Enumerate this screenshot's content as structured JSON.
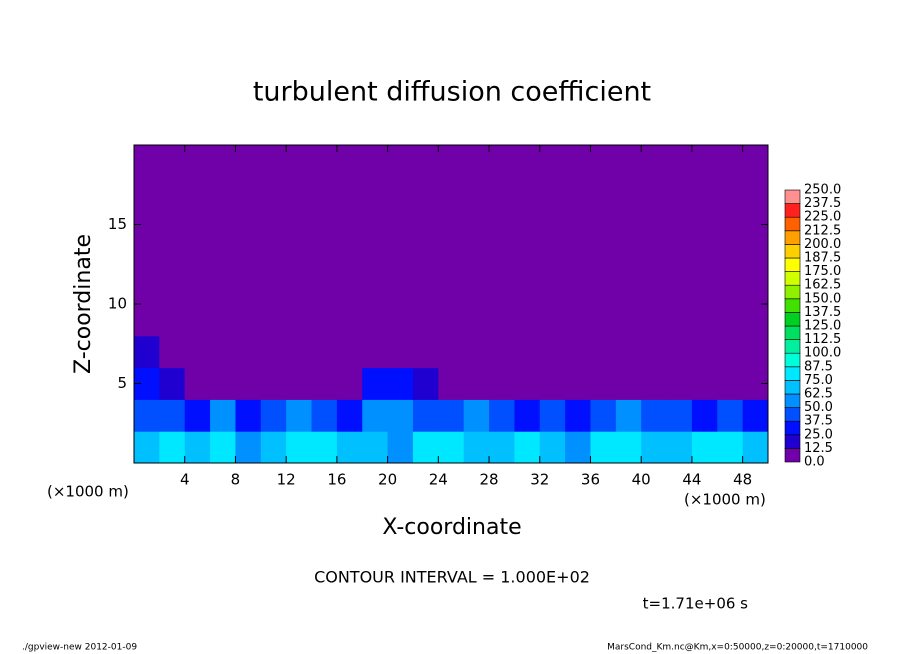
{
  "chart_data": {
    "type": "contour",
    "title": "turbulent diffusion coefficient",
    "x_label": "X-coordinate",
    "y_label": "Z-coordinate",
    "x_unit": "(×1000 m)",
    "y_unit": "(×1000 m)",
    "xlim": [
      0,
      50
    ],
    "ylim": [
      0,
      20
    ],
    "xticks": [
      4,
      8,
      12,
      16,
      20,
      24,
      28,
      32,
      36,
      40,
      44,
      48
    ],
    "yticks": [
      5,
      10,
      15
    ],
    "x": [
      1,
      3,
      5,
      7,
      9,
      11,
      13,
      15,
      17,
      19,
      21,
      23,
      25,
      27,
      29,
      31,
      33,
      35,
      37,
      39,
      41,
      43,
      45,
      47,
      49
    ],
    "y": [
      1,
      3,
      5,
      7,
      9,
      11,
      13,
      15,
      17,
      19
    ],
    "z": [
      [
        70,
        75,
        65,
        80,
        60,
        70,
        85,
        75,
        65,
        70,
        60,
        75,
        80,
        70,
        65,
        75,
        70,
        60,
        80,
        75,
        70,
        65,
        75,
        80,
        70
      ],
      [
        45,
        40,
        35,
        50,
        30,
        45,
        55,
        40,
        35,
        50,
        55,
        45,
        40,
        50,
        45,
        35,
        40,
        30,
        45,
        50,
        40,
        45,
        35,
        40,
        30
      ],
      [
        35,
        20,
        0,
        0,
        0,
        5,
        0,
        0,
        5,
        25,
        35,
        15,
        0,
        0,
        0,
        0,
        0,
        0,
        5,
        0,
        0,
        0,
        0,
        0,
        0
      ],
      [
        15,
        0,
        0,
        0,
        0,
        0,
        0,
        5,
        10,
        0,
        0,
        0,
        0,
        0,
        0,
        0,
        0,
        0,
        0,
        0,
        0,
        0,
        0,
        0,
        0
      ],
      [
        0,
        0,
        0,
        0,
        0,
        0,
        0,
        0,
        0,
        0,
        0,
        0,
        0,
        0,
        0,
        0,
        0,
        0,
        0,
        0,
        0,
        0,
        0,
        0,
        0
      ],
      [
        0,
        0,
        0,
        0,
        0,
        0,
        0,
        0,
        0,
        0,
        0,
        0,
        0,
        0,
        0,
        0,
        0,
        0,
        0,
        0,
        0,
        0,
        0,
        0,
        0
      ],
      [
        0,
        0,
        0,
        0,
        0,
        0,
        0,
        0,
        0,
        0,
        0,
        0,
        0,
        0,
        0,
        0,
        0,
        0,
        0,
        0,
        0,
        0,
        0,
        0,
        0
      ],
      [
        0,
        0,
        0,
        0,
        0,
        0,
        0,
        0,
        0,
        0,
        0,
        0,
        0,
        0,
        0,
        0,
        0,
        0,
        0,
        0,
        0,
        0,
        0,
        0,
        0
      ],
      [
        0,
        0,
        0,
        0,
        0,
        0,
        0,
        0,
        0,
        0,
        0,
        0,
        0,
        0,
        0,
        0,
        0,
        0,
        0,
        0,
        0,
        0,
        0,
        0,
        0
      ],
      [
        0,
        0,
        0,
        0,
        0,
        0,
        0,
        0,
        0,
        0,
        0,
        0,
        0,
        0,
        0,
        0,
        0,
        0,
        0,
        0,
        0,
        0,
        0,
        0,
        0
      ]
    ],
    "levels": [
      {
        "value": 0,
        "label": "0.0"
      },
      {
        "value": 12.5,
        "label": "12.5"
      },
      {
        "value": 25,
        "label": "25.0"
      },
      {
        "value": 37.5,
        "label": "37.5"
      },
      {
        "value": 50,
        "label": "50.0"
      },
      {
        "value": 62.5,
        "label": "62.5"
      },
      {
        "value": 75,
        "label": "75.0"
      },
      {
        "value": 87.5,
        "label": "87.5"
      },
      {
        "value": 100,
        "label": "100.0"
      },
      {
        "value": 112.5,
        "label": "112.5"
      },
      {
        "value": 125,
        "label": "125.0"
      },
      {
        "value": 137.5,
        "label": "137.5"
      },
      {
        "value": 150,
        "label": "150.0"
      },
      {
        "value": 162.5,
        "label": "162.5"
      },
      {
        "value": 175,
        "label": "175.0"
      },
      {
        "value": 187.5,
        "label": "187.5"
      },
      {
        "value": 200,
        "label": "200.0"
      },
      {
        "value": 212.5,
        "label": "212.5"
      },
      {
        "value": 225,
        "label": "225.0"
      },
      {
        "value": 237.5,
        "label": "237.5"
      },
      {
        "value": 250,
        "label": "250.0"
      }
    ],
    "colors": [
      "#7000a8",
      "#2000d0",
      "#0010ff",
      "#0050ff",
      "#0090ff",
      "#00c0ff",
      "#00e8ff",
      "#00ffd8",
      "#00f0a0",
      "#00e060",
      "#00d020",
      "#40e000",
      "#90f000",
      "#d0ff00",
      "#ffff00",
      "#ffd000",
      "#ffa000",
      "#ff6000",
      "#ff2020",
      "#ff9090"
    ],
    "annotation": "CONTOUR INTERVAL = 1.000E+02",
    "time_label": "t=1.71e+06 s",
    "footer_left": "./gpview-new  2012-01-09",
    "footer_right": "MarsCond_Km.nc@Km,x=0:50000,z=0:20000,t=1710000"
  }
}
